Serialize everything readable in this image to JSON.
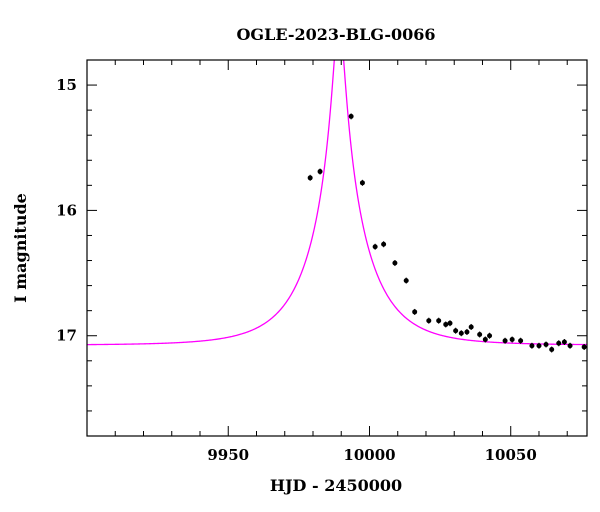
{
  "chart_data": {
    "type": "scatter",
    "title": "OGLE-2023-BLG-0066",
    "xlabel": "HJD - 2450000",
    "ylabel": "I magnitude",
    "xlim": [
      9900,
      10077
    ],
    "ylim": [
      17.8,
      14.8
    ],
    "y_inverted": true,
    "x_ticks": [
      9950,
      10000,
      10050
    ],
    "x_minor_step": 10,
    "y_ticks": [
      15,
      16,
      17
    ],
    "y_tick_labels": [
      "15",
      "16",
      "17"
    ],
    "y_minor_step": 0.2,
    "grid": false,
    "legend": "none",
    "series": [
      {
        "kind": "points",
        "color": "#000000",
        "x": [
          9979.0,
          9982.5,
          9993.5,
          9997.5,
          10002.0,
          10005.0,
          10009.0,
          10013.0,
          10016.0,
          10021.0,
          10024.5,
          10027.0,
          10028.5,
          10030.5,
          10032.5,
          10034.5,
          10036.0,
          10039.0,
          10041.0,
          10042.5,
          10048.0,
          10050.5,
          10053.5,
          10057.5,
          10060.0,
          10062.5,
          10064.5,
          10067.0,
          10069.0,
          10071.0,
          10076.0
        ],
        "y": [
          15.74,
          15.69,
          15.25,
          15.78,
          16.29,
          16.27,
          16.42,
          16.56,
          16.81,
          16.88,
          16.88,
          16.91,
          16.9,
          16.96,
          16.98,
          16.97,
          16.93,
          16.99,
          17.03,
          17.0,
          17.04,
          17.03,
          17.04,
          17.08,
          17.08,
          17.07,
          17.11,
          17.06,
          17.05,
          17.08,
          17.09
        ]
      },
      {
        "kind": "model",
        "color": "#ff00ff",
        "model": "pspl",
        "t0": 9989.2,
        "u0": 0.09,
        "tE": 19.5,
        "I_base": 17.075
      }
    ]
  }
}
